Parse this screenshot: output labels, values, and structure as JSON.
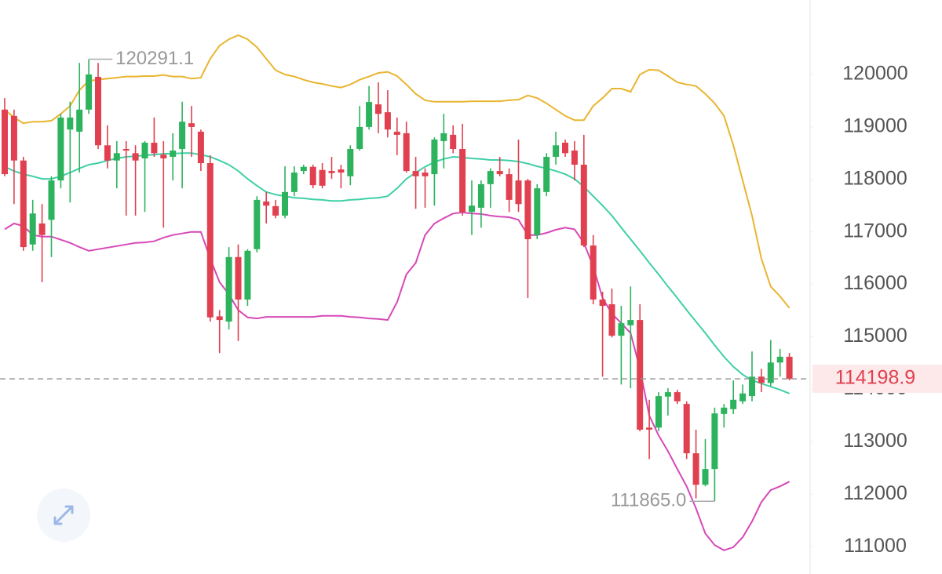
{
  "chart_data": {
    "type": "candlestick",
    "up_color": "#2db35d",
    "down_color": "#e0404f",
    "ylim": [
      110500,
      121400
    ],
    "yticks": [
      111000,
      112000,
      113000,
      114000,
      115000,
      116000,
      117000,
      118000,
      119000,
      120000
    ],
    "last_price": 114198.9,
    "high_label": 120291.1,
    "low_label": {
      "value": 111865,
      "label": "111865.0"
    },
    "open": [
      119330,
      119210,
      118360,
      116760,
      117160,
      117230,
      117980,
      118950,
      118910,
      119330,
      119955,
      118650,
      118360,
      118580,
      118500,
      118400,
      118700,
      118470,
      118430,
      118580,
      119070,
      118910,
      118310,
      115390,
      115290,
      116520,
      115710,
      116670,
      117580,
      117490,
      117310,
      117760,
      118160,
      118240,
      118180,
      118160,
      118190,
      118060,
      118580,
      119000,
      119430,
      119280,
      118910,
      118880,
      118160,
      118130,
      118100,
      118730,
      118850,
      118580,
      117380,
      117460,
      117910,
      118160,
      118100,
      117980,
      117980,
      116940,
      117760,
      118430,
      118700,
      118550,
      118280,
      116740,
      115710,
      115620,
      115020,
      115220,
      115320,
      113270,
      113270,
      113860,
      113945,
      113720,
      112780,
      112180,
      112480,
      113530,
      113620,
      113770,
      113870,
      114240,
      114120,
      114510,
      114620
    ],
    "high": [
      119550,
      119330,
      118430,
      117610,
      117530,
      118060,
      119250,
      119480,
      120220,
      120291.1,
      120220,
      119030,
      118730,
      118730,
      118650,
      118730,
      119180,
      118730,
      118880,
      119480,
      119400,
      118950,
      118460,
      115510,
      116710,
      116760,
      116670,
      117680,
      117760,
      117610,
      118250,
      118250,
      118280,
      118280,
      118310,
      118430,
      118280,
      118650,
      119400,
      119780,
      119850,
      119700,
      119180,
      119100,
      118430,
      118210,
      118800,
      119250,
      119030,
      119060,
      117980,
      117980,
      118210,
      118430,
      118210,
      118760,
      118010,
      117910,
      118500,
      118910,
      118760,
      118730,
      118850,
      116940,
      115860,
      115920,
      115590,
      115960,
      115620,
      113800,
      113945,
      114020,
      113990,
      113770,
      113230,
      113050,
      113650,
      113720,
      114170,
      114090,
      114720,
      114390,
      114940,
      114770,
      114690
    ],
    "low": [
      118060,
      117530,
      116640,
      116640,
      116040,
      116520,
      117830,
      117560,
      118130,
      119250,
      118580,
      118210,
      117830,
      117310,
      117310,
      117380,
      118430,
      117080,
      117980,
      117830,
      118430,
      118160,
      115290,
      114690,
      115140,
      114920,
      115590,
      116610,
      117160,
      117260,
      117260,
      117680,
      118100,
      117830,
      117830,
      118010,
      117830,
      117890,
      118550,
      118950,
      118880,
      118800,
      118460,
      118130,
      117440,
      117460,
      117500,
      118210,
      118500,
      117310,
      116940,
      117080,
      117460,
      118060,
      117380,
      117380,
      115740,
      116860,
      117680,
      118280,
      118430,
      117980,
      116710,
      115620,
      114240,
      114990,
      114090,
      114020,
      113200,
      112670,
      113200,
      113500,
      113720,
      112670,
      111920,
      112150,
      111865,
      113270,
      113530,
      113720,
      113770,
      113945,
      114060,
      114240,
      114170
    ],
    "close": [
      118100,
      118360,
      116710,
      117350,
      116940,
      117980,
      119180,
      119180,
      119330,
      120000,
      118650,
      118360,
      118500,
      118550,
      118360,
      118700,
      118500,
      118400,
      118550,
      119100,
      119000,
      118310,
      115370,
      115320,
      116520,
      115710,
      116640,
      117610,
      117500,
      117310,
      117760,
      118130,
      118240,
      117890,
      117880,
      118120,
      118130,
      118580,
      119000,
      119475,
      119250,
      118950,
      118850,
      118160,
      118060,
      118060,
      118760,
      118880,
      118580,
      117380,
      117500,
      117910,
      118160,
      118100,
      117610,
      117530,
      116860,
      117830,
      118430,
      118650,
      118500,
      118280,
      116740,
      115710,
      115590,
      115020,
      115260,
      115320,
      113230,
      113230,
      113870,
      113945,
      113770,
      112780,
      112180,
      112480,
      113540,
      113650,
      113800,
      113920,
      114240,
      114120,
      114510,
      114620,
      114198.9
    ],
    "series": [
      {
        "color": "#e9b530",
        "values": [
          119330,
          119180,
          119070,
          119100,
          119100,
          119120,
          119250,
          119400,
          119700,
          119880,
          119900,
          119920,
          119940,
          119960,
          119960,
          119970,
          119970,
          119990,
          119960,
          119960,
          119920,
          119940,
          120300,
          120550,
          120670,
          120750,
          120670,
          120520,
          120300,
          120080,
          120000,
          119960,
          119900,
          119850,
          119820,
          119780,
          119750,
          119810,
          119900,
          119960,
          120030,
          120050,
          119970,
          119810,
          119630,
          119510,
          119480,
          119480,
          119480,
          119480,
          119490,
          119490,
          119490,
          119490,
          119510,
          119520,
          119600,
          119550,
          119450,
          119330,
          119210,
          119130,
          119130,
          119400,
          119550,
          119730,
          119730,
          119670,
          120000,
          120090,
          120080,
          119970,
          119850,
          119810,
          119780,
          119630,
          119450,
          119210,
          118650,
          117980,
          117310,
          116490,
          115960,
          115770,
          115550
        ]
      },
      {
        "color": "#3fcfa6",
        "values": [
          118240,
          118160,
          118100,
          118060,
          118010,
          118010,
          118060,
          118130,
          118210,
          118280,
          118310,
          118360,
          118400,
          118430,
          118440,
          118460,
          118470,
          118490,
          118490,
          118500,
          118500,
          118470,
          118430,
          118360,
          118280,
          118160,
          118010,
          117880,
          117760,
          117710,
          117680,
          117650,
          117640,
          117620,
          117610,
          117590,
          117590,
          117610,
          117620,
          117640,
          117650,
          117680,
          117830,
          118010,
          118130,
          118240,
          118330,
          118390,
          118430,
          118420,
          118400,
          118390,
          118370,
          118370,
          118360,
          118340,
          118300,
          118250,
          118210,
          118160,
          118100,
          118010,
          117860,
          117680,
          117500,
          117310,
          117080,
          116860,
          116640,
          116410,
          116190,
          115960,
          115740,
          115510,
          115290,
          115070,
          114840,
          114620,
          114430,
          114280,
          114170,
          114110,
          114050,
          113990,
          113920
        ]
      },
      {
        "color": "#d649b8",
        "values": [
          117050,
          117160,
          117110,
          116940,
          116910,
          116910,
          116850,
          116790,
          116710,
          116640,
          116670,
          116700,
          116730,
          116760,
          116790,
          116800,
          116820,
          116890,
          116940,
          116970,
          117000,
          117000,
          116490,
          116040,
          115810,
          115510,
          115370,
          115350,
          115380,
          115380,
          115380,
          115380,
          115380,
          115380,
          115400,
          115400,
          115400,
          115380,
          115370,
          115350,
          115340,
          115320,
          115660,
          116190,
          116410,
          116940,
          117160,
          117260,
          117350,
          117370,
          117350,
          117340,
          117310,
          117290,
          117280,
          117230,
          116940,
          116940,
          116980,
          117040,
          117080,
          117050,
          116790,
          116340,
          115740,
          115440,
          115260,
          115070,
          114390,
          113500,
          113120,
          112820,
          112480,
          112150,
          111730,
          111250,
          111030,
          110930,
          110990,
          111180,
          111480,
          111850,
          112080,
          112150,
          112240
        ]
      }
    ]
  }
}
